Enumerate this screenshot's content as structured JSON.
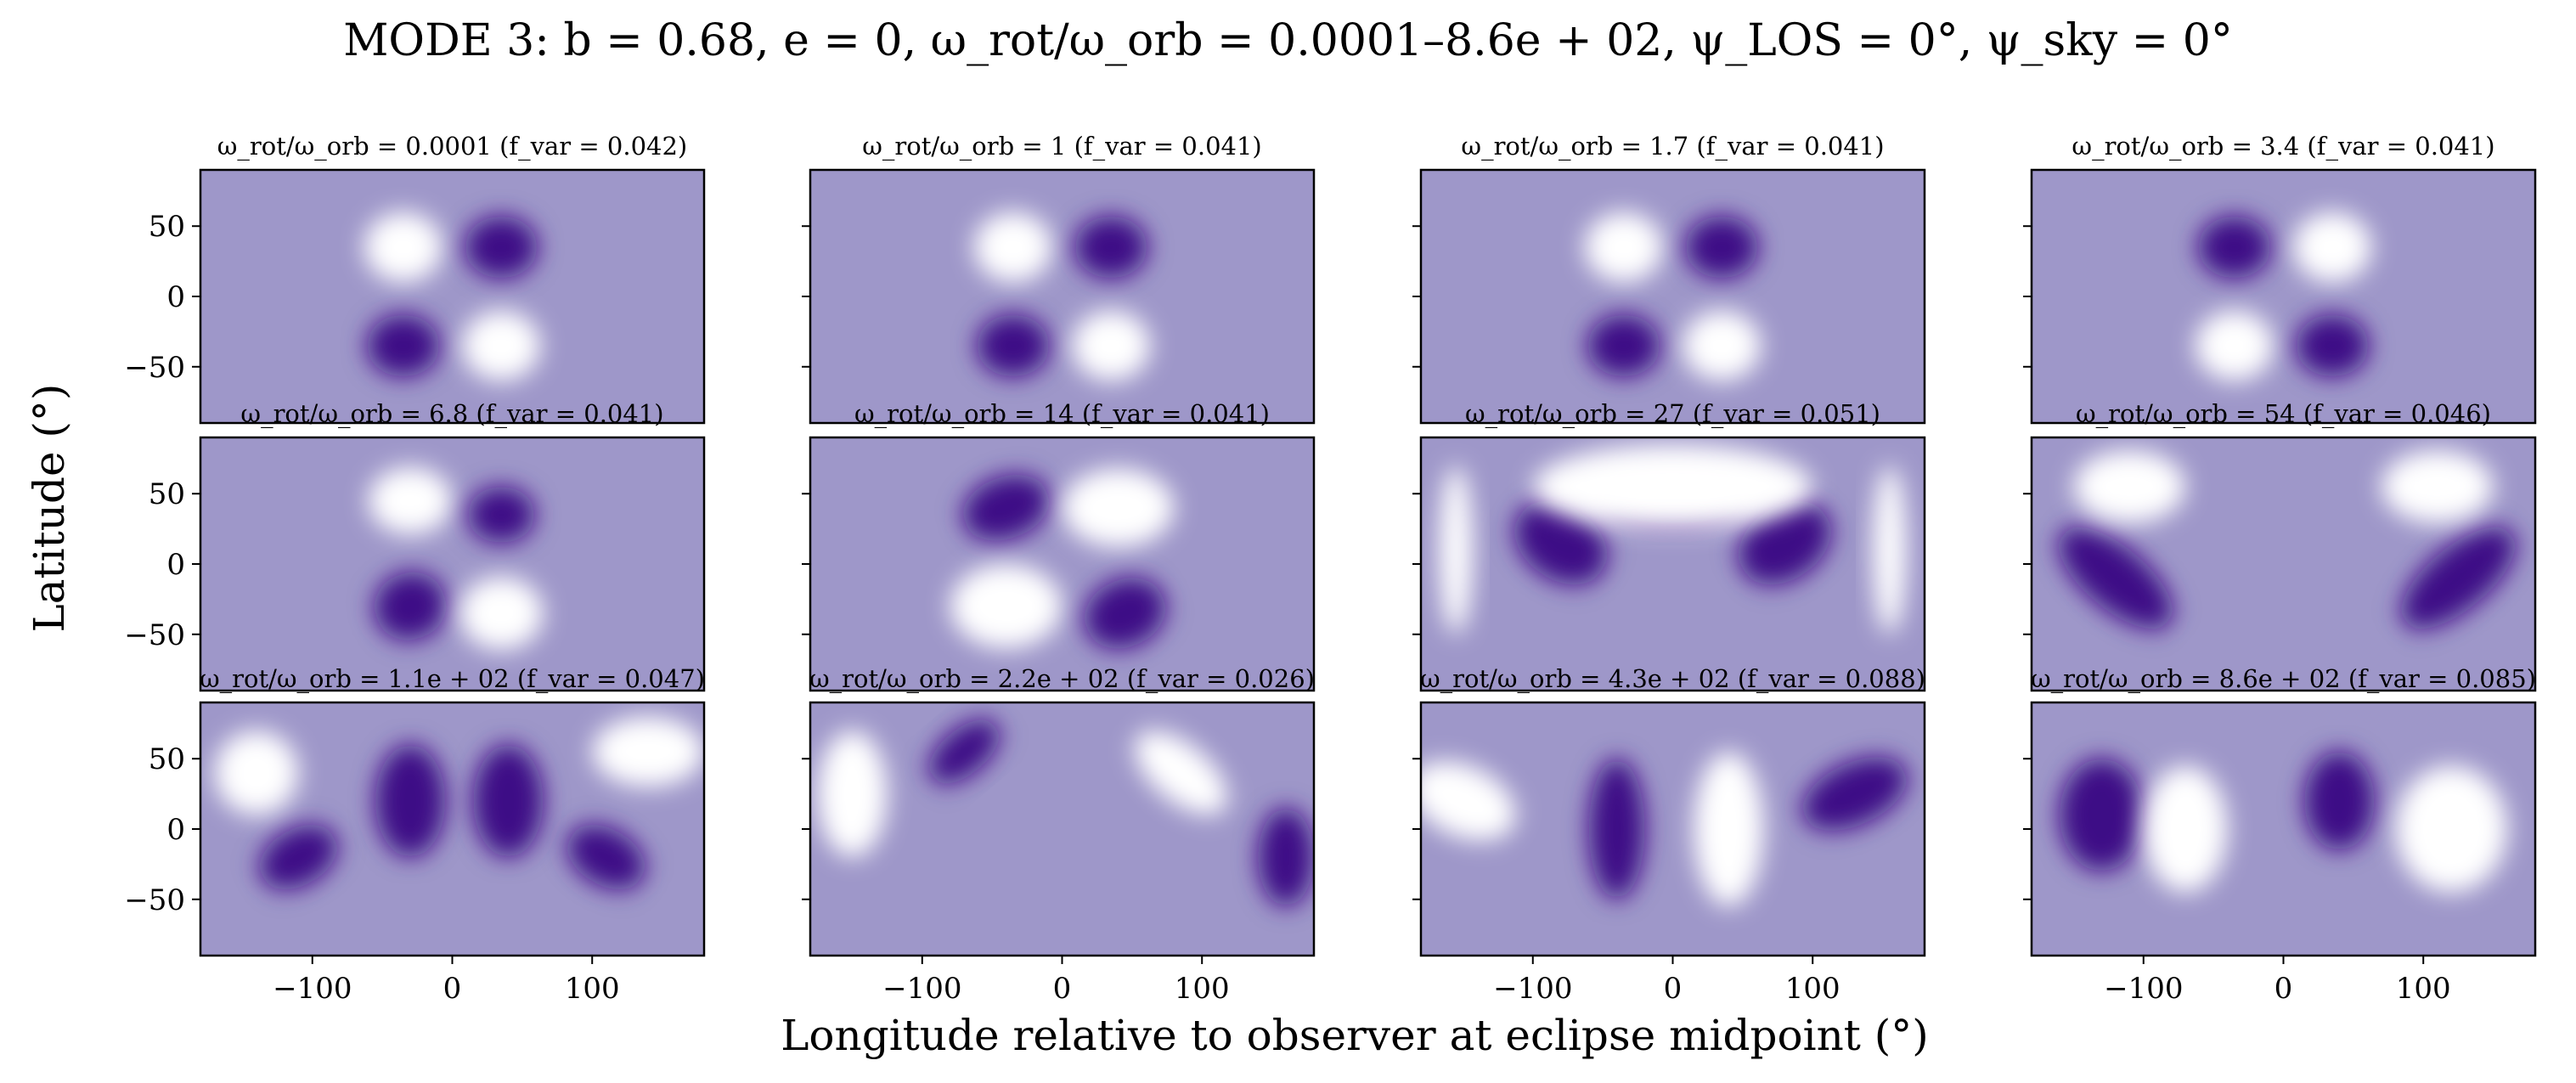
{
  "figure": {
    "suptitle": "MODE 3: b = 0.68, e = 0, ω_rot/ω_orb = 0.0001–8.6e + 02, ψ_LOS = 0°, ψ_sky = 0°",
    "xlabel": "Longitude relative to observer at eclipse midpoint (°)",
    "ylabel": "Latitude (°)"
  },
  "colors": {
    "background_level": "#9e97c9",
    "light": "#ffffff",
    "dark": "#3d0a86",
    "axis": "#000000"
  },
  "chart_data": {
    "type": "heatmap",
    "colormap": "purples",
    "grid": false,
    "xlim": [
      -180,
      180
    ],
    "ylim": [
      -90,
      90
    ],
    "x_ticks": [
      -100,
      0,
      100
    ],
    "x_tick_labels": [
      "−100",
      "0",
      "100"
    ],
    "y_ticks": [
      50,
      0,
      -50
    ],
    "y_tick_labels": [
      "50",
      "0",
      "−50"
    ],
    "ratio_label": "ω_rot/ω_orb",
    "fvar_label": "f_var",
    "panels": [
      {
        "ratio": "0.0001",
        "fvar": "0.042"
      },
      {
        "ratio": "1",
        "fvar": "0.041"
      },
      {
        "ratio": "1.7",
        "fvar": "0.041"
      },
      {
        "ratio": "3.4",
        "fvar": "0.041"
      },
      {
        "ratio": "6.8",
        "fvar": "0.041"
      },
      {
        "ratio": "14",
        "fvar": "0.041"
      },
      {
        "ratio": "27",
        "fvar": "0.051"
      },
      {
        "ratio": "54",
        "fvar": "0.046"
      },
      {
        "ratio": "1.1e + 02",
        "fvar": "0.047"
      },
      {
        "ratio": "2.2e + 02",
        "fvar": "0.026"
      },
      {
        "ratio": "4.3e + 02",
        "fvar": "0.088"
      },
      {
        "ratio": "8.6e + 02",
        "fvar": "0.085"
      }
    ]
  }
}
